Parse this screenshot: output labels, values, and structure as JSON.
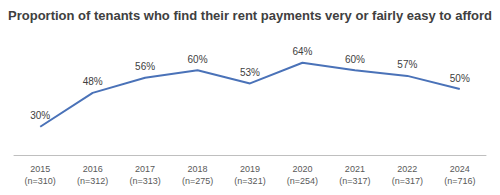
{
  "chart_data": {
    "type": "line",
    "title": "Proportion of tenants who find their rent payments very or fairly easy to afford",
    "categories": [
      "2015\n(n=310)",
      "2016\n(n=312)",
      "2017\n(n=313)",
      "2018\n(n=275)",
      "2019\n(n=321)",
      "2020\n(n=254)",
      "2021\n(n=317)",
      "2022\n(n=317)",
      "2024\n(n=716)"
    ],
    "values": [
      30,
      48,
      56,
      60,
      53,
      64,
      60,
      57,
      50
    ],
    "value_labels": [
      "30%",
      "48%",
      "56%",
      "60%",
      "53%",
      "64%",
      "60%",
      "57%",
      "50%"
    ],
    "color": "#4a72b8",
    "ylim": [
      15,
      75
    ],
    "data_labels": true,
    "tick_labels": "x",
    "grid": false
  }
}
